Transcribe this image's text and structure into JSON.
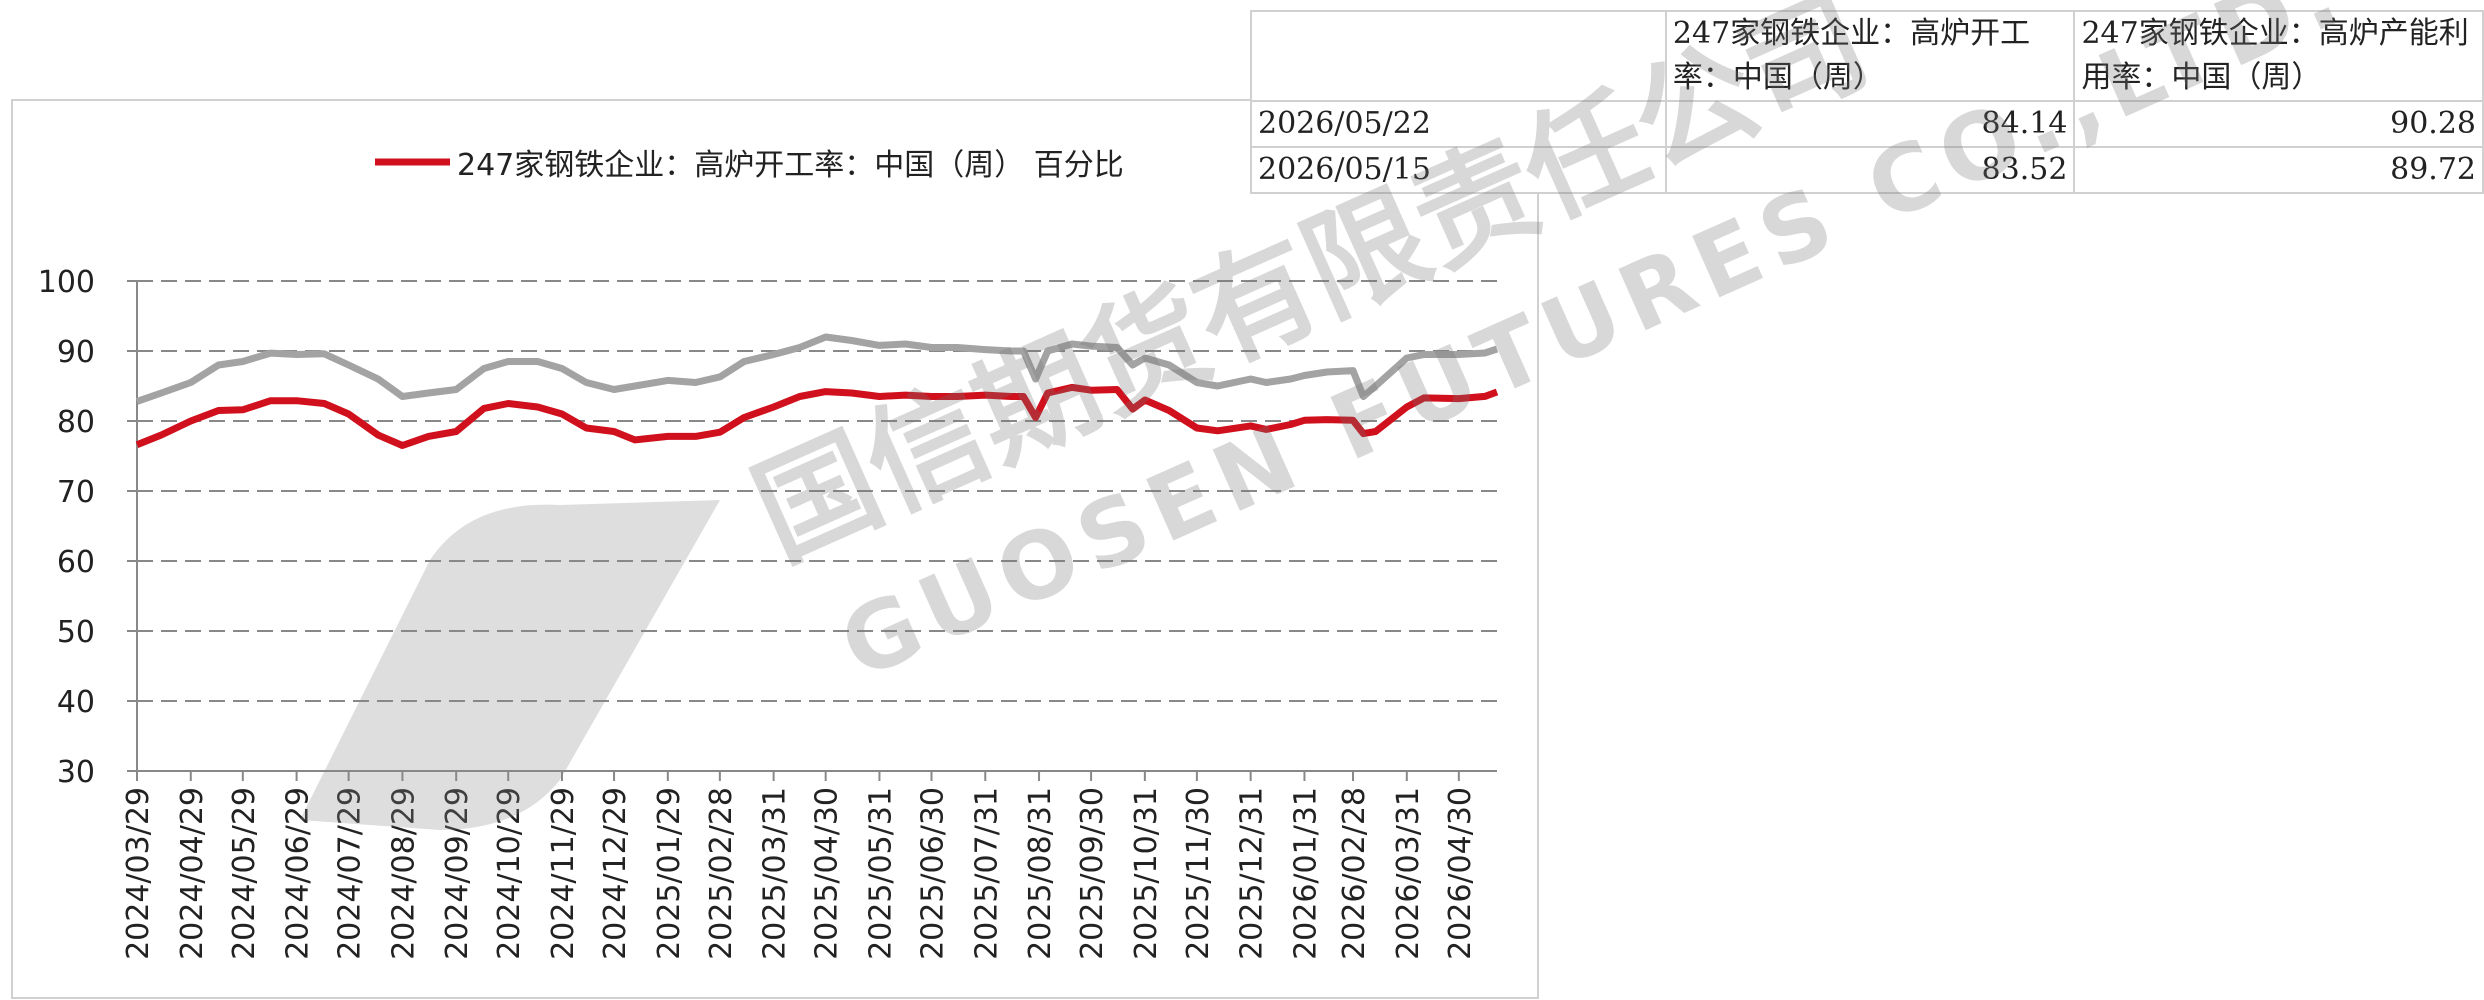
{
  "chart_data": {
    "type": "line",
    "x": [
      "2024/03/29",
      "2024/04/12",
      "2024/04/29",
      "2024/05/15",
      "2024/05/29",
      "2024/06/14",
      "2024/06/29",
      "2024/07/15",
      "2024/07/29",
      "2024/08/15",
      "2024/08/29",
      "2024/09/13",
      "2024/09/29",
      "2024/10/15",
      "2024/10/29",
      "2024/11/15",
      "2024/11/29",
      "2024/12/13",
      "2024/12/29",
      "2025/01/10",
      "2025/01/29",
      "2025/02/14",
      "2025/02/28",
      "2025/03/14",
      "2025/03/31",
      "2025/04/15",
      "2025/04/30",
      "2025/05/15",
      "2025/05/31",
      "2025/06/15",
      "2025/06/30",
      "2025/07/15",
      "2025/07/31",
      "2025/08/15",
      "2025/08/22",
      "2025/08/29",
      "2025/09/05",
      "2025/09/19",
      "2025/09/30",
      "2025/10/15",
      "2025/10/24",
      "2025/10/31",
      "2025/11/14",
      "2025/11/30",
      "2025/12/12",
      "2025/12/31",
      "2026/01/09",
      "2026/01/23",
      "2026/01/31",
      "2026/02/13",
      "2026/02/28",
      "2026/03/06",
      "2026/03/13",
      "2026/03/31",
      "2026/04/10",
      "2026/04/30",
      "2026/05/15",
      "2026/05/22"
    ],
    "series": [
      {
        "name": "247家钢铁企业：高炉开工率：中国（周） 百分比",
        "color": "#d0101c",
        "values": [
          76.6,
          78,
          80,
          81.5,
          81.6,
          82.9,
          82.9,
          82.5,
          81,
          78,
          76.5,
          77.8,
          78.5,
          81.8,
          82.5,
          82,
          81,
          79,
          78.5,
          77.3,
          77.8,
          77.8,
          78.4,
          80.5,
          82,
          83.5,
          84.2,
          84,
          83.5,
          83.7,
          83.5,
          83.5,
          83.7,
          83.5,
          83.5,
          80.5,
          84,
          84.8,
          84.4,
          84.5,
          81.7,
          83,
          81.5,
          79,
          78.6,
          79.3,
          78.8,
          79.5,
          80.1,
          80.2,
          80.1,
          78.2,
          78.5,
          82,
          83.3,
          83.2,
          83.52,
          84.14
        ]
      },
      {
        "color": "#a3a3a3",
        "values": [
          82.8,
          84,
          85.5,
          88,
          88.5,
          89.7,
          89.5,
          89.6,
          88,
          86,
          83.5,
          84,
          84.5,
          87.5,
          88.5,
          88.5,
          87.5,
          85.5,
          84.5,
          85,
          85.8,
          85.5,
          86.3,
          88.5,
          89.5,
          90.5,
          92,
          91.5,
          90.8,
          91,
          90.5,
          90.5,
          90.2,
          90,
          90,
          86,
          90,
          91,
          90.7,
          90.5,
          88,
          89,
          88,
          85.5,
          85,
          86,
          85.5,
          86,
          86.5,
          87,
          87.2,
          83.5,
          85,
          89,
          89.5,
          89.5,
          89.72,
          90.28
        ]
      }
    ],
    "xlim": [
      "2024/03/29",
      "2026/05/22"
    ],
    "xticks": [
      "2024/03/29",
      "2024/04/29",
      "2024/05/29",
      "2024/06/29",
      "2024/07/29",
      "2024/08/29",
      "2024/09/29",
      "2024/10/29",
      "2024/11/29",
      "2024/12/29",
      "2025/01/29",
      "2025/02/28",
      "2025/03/31",
      "2025/04/30",
      "2025/05/31",
      "2025/06/30",
      "2025/07/31",
      "2025/08/31",
      "2025/09/30",
      "2025/10/31",
      "2025/11/30",
      "2025/12/31",
      "2026/01/31",
      "2026/02/28",
      "2026/03/31",
      "2026/04/30"
    ],
    "ylim": [
      30,
      100
    ],
    "yticks": [
      30,
      40,
      50,
      60,
      70,
      80,
      90,
      100
    ],
    "grid": true,
    "legend": "top"
  },
  "table": {
    "header": [
      "247家钢铁企业：高炉开工率：中国（周）",
      "247家钢铁企业：高炉产能利用率：中国（周）"
    ],
    "rows": [
      [
        "2026/05/22",
        "84.14",
        "90.28"
      ],
      [
        "2026/05/15",
        "83.52",
        "89.72"
      ]
    ]
  },
  "watermark": {
    "cn": "国信期货有限责任公司",
    "en": "GUOSEN FUTURES CO.,LTD."
  }
}
